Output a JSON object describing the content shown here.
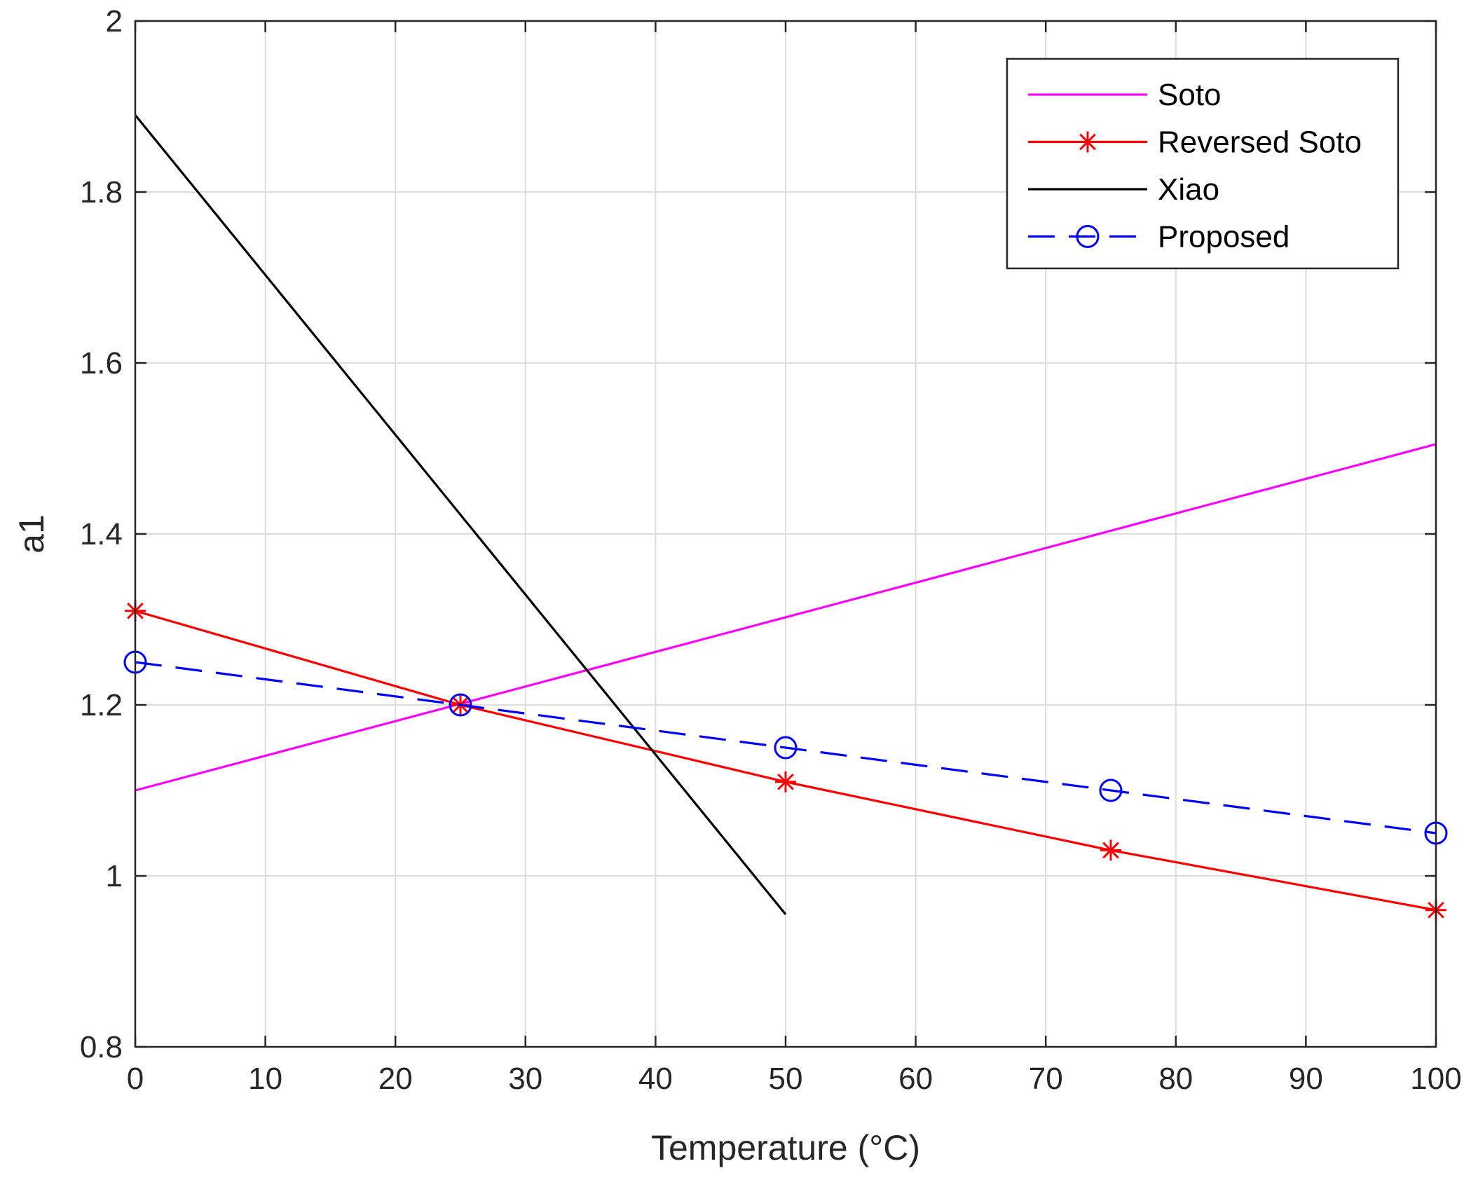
{
  "chart_data": {
    "type": "line",
    "title": "",
    "xlabel": "Temperature (°C)",
    "ylabel": "a1",
    "xlim": [
      0,
      100
    ],
    "ylim": [
      0.8,
      2
    ],
    "xticks": [
      0,
      10,
      20,
      30,
      40,
      50,
      60,
      70,
      80,
      90,
      100
    ],
    "xtick_labels": [
      "0",
      "10",
      "20",
      "30",
      "40",
      "50",
      "60",
      "70",
      "80",
      "90",
      "100"
    ],
    "yticks": [
      0.8,
      1,
      1.2,
      1.4,
      1.6,
      1.8,
      2
    ],
    "ytick_labels": [
      "0.8",
      "1",
      "1.2",
      "1.4",
      "1.6",
      "1.8",
      "2"
    ],
    "grid": true,
    "legend_position": "top-right",
    "series": [
      {
        "name": "Soto",
        "color": "#ff00ff",
        "line_style": "solid",
        "marker": "none",
        "x": [
          0,
          100
        ],
        "y": [
          1.1,
          1.505
        ]
      },
      {
        "name": "Reversed Soto",
        "color": "#ff0000",
        "line_style": "solid",
        "marker": "asterisk",
        "x": [
          0,
          25,
          50,
          75,
          100
        ],
        "y": [
          1.31,
          1.2,
          1.11,
          1.03,
          0.96
        ]
      },
      {
        "name": "Xiao",
        "color": "#000000",
        "line_style": "solid",
        "marker": "none",
        "x": [
          0,
          50
        ],
        "y": [
          1.89,
          0.955
        ]
      },
      {
        "name": "Proposed",
        "color": "#0000ff",
        "line_style": "dashed",
        "marker": "circle",
        "x": [
          0,
          25,
          50,
          75,
          100
        ],
        "y": [
          1.25,
          1.2,
          1.15,
          1.1,
          1.05
        ]
      }
    ]
  }
}
